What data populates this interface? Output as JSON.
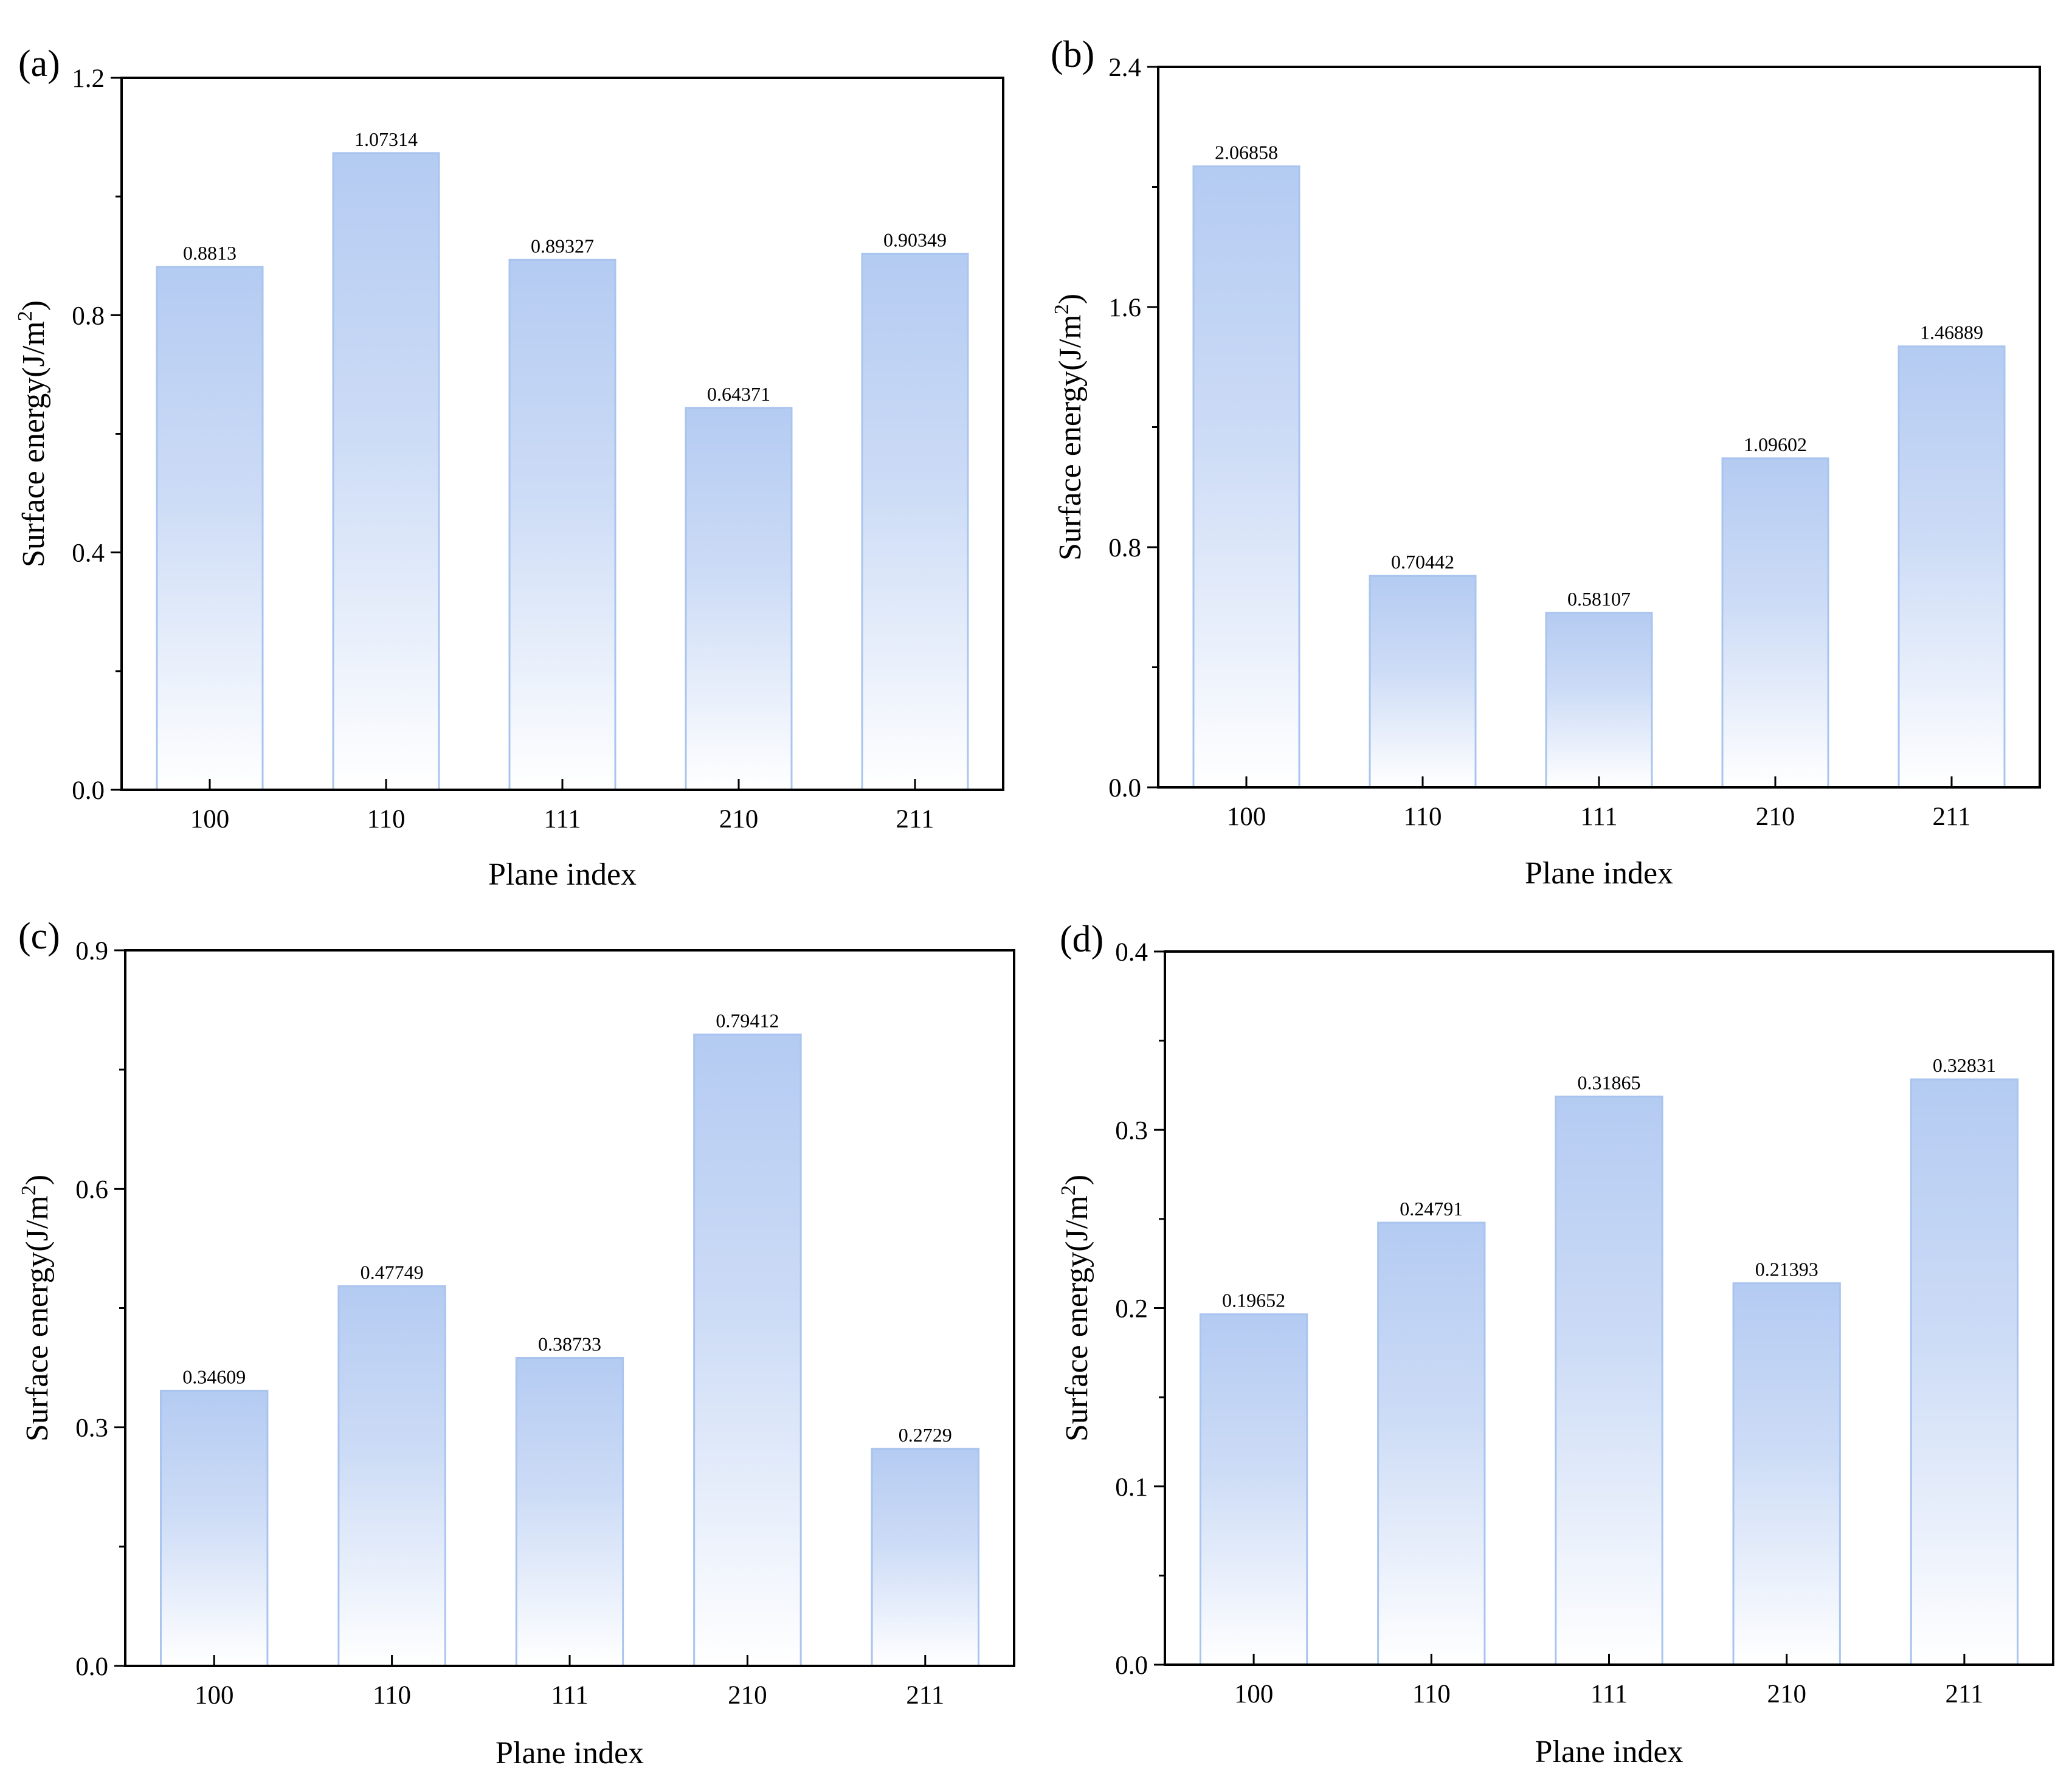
{
  "chart_data": [
    {
      "type": "bar",
      "panel": "(a)",
      "categories": [
        "100",
        "110",
        "111",
        "210",
        "211"
      ],
      "values": [
        0.8813,
        1.07314,
        0.89327,
        0.64371,
        0.90349
      ],
      "value_labels": [
        "0.8813",
        "1.07314",
        "0.89327",
        "0.64371",
        "0.90349"
      ],
      "xlabel": "Plane index",
      "ylabel_main": "Surface energy(J/m",
      "ylabel_sup": "2",
      "ylabel_end": ")",
      "ylim": [
        0,
        1.2
      ],
      "yticks": [
        0,
        0.4,
        0.8,
        1.2
      ],
      "ytick_labels": [
        "0.0",
        "0.4",
        "0.8",
        "1.2"
      ],
      "minor_yticks": [
        0.2,
        0.6,
        1.0
      ]
    },
    {
      "type": "bar",
      "panel": "(b)",
      "categories": [
        "100",
        "110",
        "111",
        "210",
        "211"
      ],
      "values": [
        2.06858,
        0.70442,
        0.58107,
        1.09602,
        1.46889
      ],
      "value_labels": [
        "2.06858",
        "0.70442",
        "0.58107",
        "1.09602",
        "1.46889"
      ],
      "xlabel": "Plane index",
      "ylabel_main": "Surface energy(J/m",
      "ylabel_sup": "2",
      "ylabel_end": ")",
      "ylim": [
        0,
        2.4
      ],
      "yticks": [
        0,
        0.8,
        1.6,
        2.4
      ],
      "ytick_labels": [
        "0.0",
        "0.8",
        "1.6",
        "2.4"
      ],
      "minor_yticks": [
        0.4,
        1.2,
        2.0
      ]
    },
    {
      "type": "bar",
      "panel": "(c)",
      "categories": [
        "100",
        "110",
        "111",
        "210",
        "211"
      ],
      "values": [
        0.34609,
        0.47749,
        0.38733,
        0.79412,
        0.2729
      ],
      "value_labels": [
        "0.34609",
        "0.47749",
        "0.38733",
        "0.79412",
        "0.2729"
      ],
      "xlabel": "Plane index",
      "ylabel_main": "Surface energy(J/m",
      "ylabel_sup": "2",
      "ylabel_end": ")",
      "ylim": [
        0,
        0.9
      ],
      "yticks": [
        0,
        0.3,
        0.6,
        0.9
      ],
      "ytick_labels": [
        "0.0",
        "0.3",
        "0.6",
        "0.9"
      ],
      "minor_yticks": [
        0.15,
        0.45,
        0.75
      ]
    },
    {
      "type": "bar",
      "panel": "(d)",
      "categories": [
        "100",
        "110",
        "111",
        "210",
        "211"
      ],
      "values": [
        0.19652,
        0.24791,
        0.31865,
        0.21393,
        0.32831
      ],
      "value_labels": [
        "0.19652",
        "0.24791",
        "0.31865",
        "0.21393",
        "0.32831"
      ],
      "xlabel": "Plane index",
      "ylabel_main": "Surface energy(J/m",
      "ylabel_sup": "2",
      "ylabel_end": ")",
      "ylim": [
        0,
        0.4
      ],
      "yticks": [
        0,
        0.1,
        0.2,
        0.3,
        0.4
      ],
      "ytick_labels": [
        "0.0",
        "0.1",
        "0.2",
        "0.3",
        "0.4"
      ],
      "minor_yticks": [
        0.05,
        0.15,
        0.25,
        0.35
      ]
    }
  ],
  "colors": {
    "bar_top": "#b4cbf2",
    "bar_bottom": "#ffffff",
    "bar_edge": "#a9c4ee",
    "axis": "#000000"
  }
}
